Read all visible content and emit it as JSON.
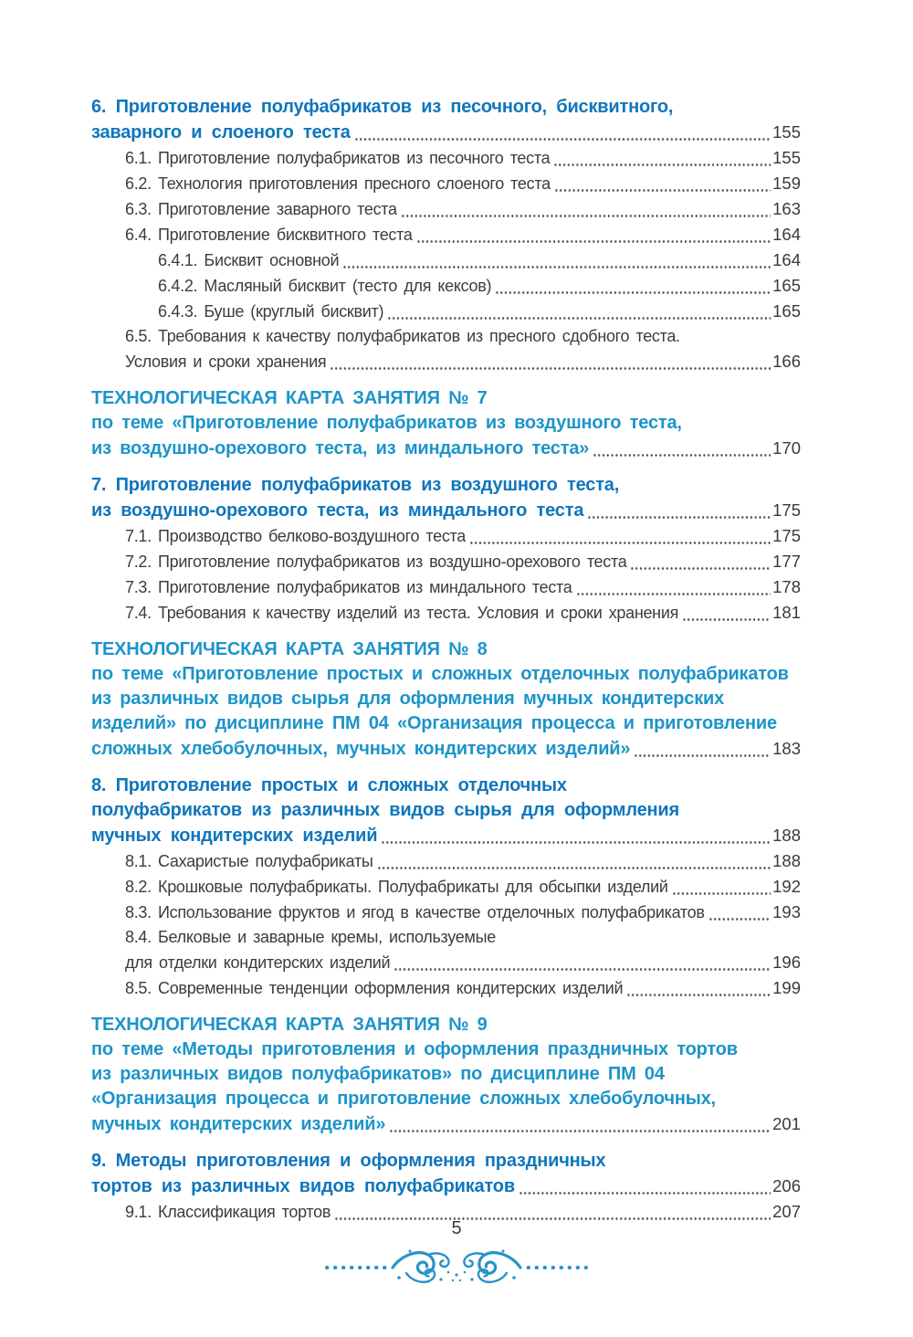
{
  "colors": {
    "chapter_heading": "#0f76bd",
    "tech_heading": "#1c94ca",
    "body_text": "#3c3c3c",
    "ornament": "#2a93c6"
  },
  "footer": {
    "page_number": "5",
    "ornament": "flourish-divider"
  },
  "toc": {
    "entries": [
      {
        "style": "chapter",
        "lines": [
          "6. Приготовление полуфабрикатов из песочного, бисквитного,",
          "заварного и слоеного теста"
        ],
        "page": "155"
      },
      {
        "style": "sub",
        "lines": [
          "6.1. Приготовление полуфабрикатов из песочного теста"
        ],
        "page": "155"
      },
      {
        "style": "sub",
        "lines": [
          "6.2. Технология приготовления пресного слоеного теста"
        ],
        "page": "159"
      },
      {
        "style": "sub",
        "lines": [
          "6.3. Приготовление заварного теста"
        ],
        "page": "163"
      },
      {
        "style": "sub",
        "lines": [
          "6.4. Приготовление бисквитного теста"
        ],
        "page": "164"
      },
      {
        "style": "subsub",
        "lines": [
          "6.4.1. Бисквит основной"
        ],
        "page": "164"
      },
      {
        "style": "subsub",
        "lines": [
          "6.4.2. Масляный бисквит (тесто для кексов)"
        ],
        "page": "165"
      },
      {
        "style": "subsub",
        "lines": [
          "6.4.3. Буше (круглый бисквит)"
        ],
        "page": "165"
      },
      {
        "style": "sub",
        "lines": [
          "6.5. Требования к качеству полуфабрикатов из пресного сдобного теста.",
          "Условия и сроки хранения"
        ],
        "page": "166"
      },
      {
        "style": "tech",
        "lines": [
          "ТЕХНОЛОГИЧЕСКАЯ КАРТА ЗАНЯТИЯ № 7",
          "по теме «Приготовление полуфабрикатов из воздушного теста,",
          "из воздушно-орехового теста, из миндального теста»"
        ],
        "page": "170"
      },
      {
        "style": "chapter",
        "lines": [
          "7. Приготовление полуфабрикатов из воздушного теста,",
          "из воздушно-орехового теста, из миндального теста"
        ],
        "page": "175"
      },
      {
        "style": "sub",
        "lines": [
          "7.1. Производство белково-воздушного теста"
        ],
        "page": "175"
      },
      {
        "style": "sub",
        "lines": [
          "7.2. Приготовление полуфабрикатов из воздушно-орехового теста"
        ],
        "page": "177"
      },
      {
        "style": "sub",
        "lines": [
          "7.3. Приготовление полуфабрикатов из миндального теста"
        ],
        "page": "178"
      },
      {
        "style": "sub",
        "lines": [
          "7.4. Требования к качеству изделий из теста. Условия и сроки хранения"
        ],
        "page": "181"
      },
      {
        "style": "tech",
        "lines": [
          "ТЕХНОЛОГИЧЕСКАЯ КАРТА ЗАНЯТИЯ № 8",
          "по теме «Приготовление простых и сложных отделочных полуфабрикатов",
          "из различных видов сырья для оформления мучных кондитерских",
          "изделий» по дисциплине ПМ 04 «Организация процесса и приготовление",
          "сложных хлебобулочных, мучных кондитерских изделий»"
        ],
        "page": "183"
      },
      {
        "style": "chapter",
        "lines": [
          "8. Приготовление простых и сложных отделочных",
          "полуфабрикатов из различных видов сырья для оформления",
          "мучных кондитерских изделий"
        ],
        "page": "188"
      },
      {
        "style": "sub",
        "lines": [
          "8.1. Сахаристые полуфабрикаты"
        ],
        "page": "188"
      },
      {
        "style": "sub",
        "lines": [
          "8.2. Крошковые полуфабрикаты. Полуфабрикаты для обсыпки изделий"
        ],
        "page": "192"
      },
      {
        "style": "sub",
        "lines": [
          "8.3. Использование фруктов и ягод в качестве отделочных полуфабрикатов"
        ],
        "page": "193"
      },
      {
        "style": "sub",
        "lines": [
          "8.4. Белковые и заварные кремы, используемые",
          "для отделки кондитерских изделий"
        ],
        "page": "196"
      },
      {
        "style": "sub",
        "lines": [
          "8.5. Современные тенденции оформления кондитерских изделий"
        ],
        "page": "199"
      },
      {
        "style": "tech",
        "lines": [
          "ТЕХНОЛОГИЧЕСКАЯ КАРТА ЗАНЯТИЯ № 9",
          "по теме «Методы приготовления и оформления праздничных тортов",
          "из различных видов полуфабрикатов» по дисциплине ПМ 04",
          "«Организация процесса и приготовление сложных хлебобулочных,",
          "мучных кондитерских изделий»"
        ],
        "page": "201"
      },
      {
        "style": "chapter",
        "lines": [
          "9. Методы приготовления и оформления праздничных",
          "тортов из различных видов полуфабрикатов"
        ],
        "page": "206"
      },
      {
        "style": "sub",
        "lines": [
          "9.1. Классификация тортов"
        ],
        "page": "207"
      }
    ]
  }
}
